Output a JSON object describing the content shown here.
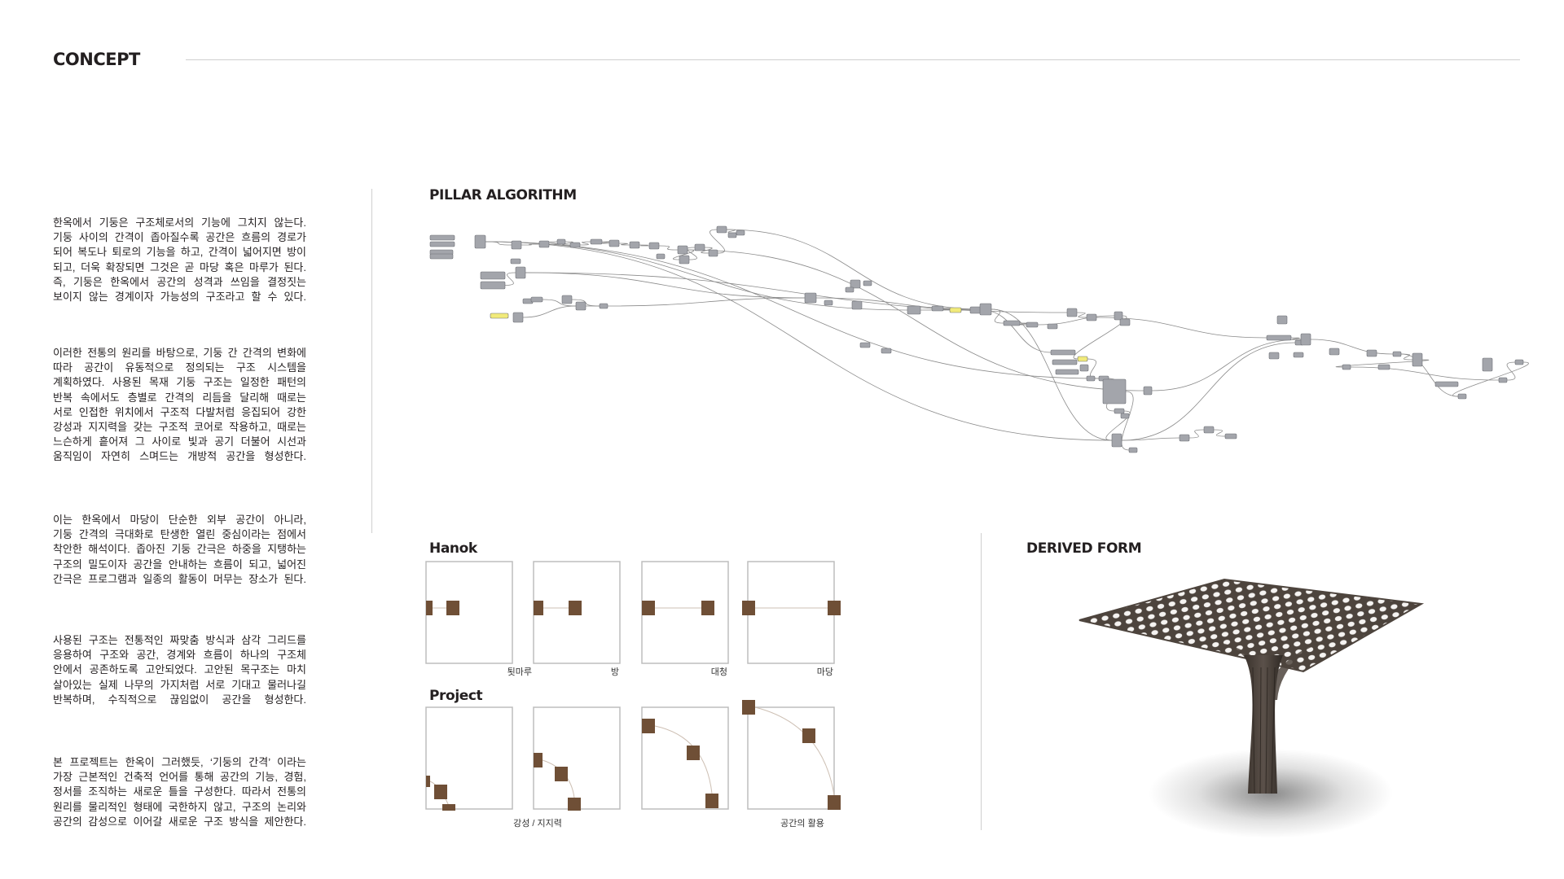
{
  "header": {
    "title": "CONCEPT"
  },
  "text": {
    "paragraphs": [
      [
        "한옥에서 기둥은 구조체로서의 기능에 그치지 않는다.",
        "기둥 사이의 간격이 좁아질수록 공간은 흐름의 경로가",
        "되어 복도나 퇴로의 기능을 하고, 간격이 넓어지면 방이",
        "되고, 더욱 확장되면 그것은 곧 마당 혹은 마루가 된다.",
        "즉, 기둥은 한옥에서 공간의 성격과 쓰임을 결정짓는",
        "보이지 않는 경계이자 가능성의 구조라고 할 수 있다."
      ],
      [
        "이러한 전통의 원리를 바탕으로, 기둥 간 간격의 변화에",
        "따라 공간이 유동적으로 정의되는 구조 시스템을",
        "계획하였다. 사용된 목재 기둥 구조는 일정한 패턴의",
        "반복 속에서도 층별로 간격의 리듬을 달리해 때로는",
        "서로 인접한 위치에서 구조적 다발처럼 응집되어 강한",
        "강성과 지지력을 갖는 구조적 코어로 작용하고, 때로는",
        "느슨하게 흩어져 그 사이로 빛과 공기 더불어 시선과",
        "움직임이 자연히 스며드는 개방적 공간을 형성한다."
      ],
      [
        "이는 한옥에서 마당이 단순한 외부 공간이 아니라,",
        "기둥 간격의 극대화로 탄생한 열린 중심이라는 점에서",
        "착안한 해석이다. 좁아진 기둥 간극은 하중을 지탱하는",
        "구조의 밀도이자 공간을 안내하는 흐름이 되고, 넓어진",
        "간극은 프로그램과 일종의 활동이 머무는 장소가 된다."
      ],
      [
        "사용된 구조는 전통적인 짜맞춤 방식과 삼각 그리드를",
        "응용하여 구조와 공간, 경계와 흐름이 하나의 구조체",
        "안에서 공존하도록 고안되었다. 고안된 목구조는 마치",
        "살아있는 실제 나무의 가지처럼 서로 기대고 물러나길",
        "반복하며, 수직적으로 끊임없이 공간을 형성한다."
      ],
      [
        "본 프로젝트는 한옥이 그러했듯, ‘기둥의 간격’ 이라는",
        "가장 근본적인 건축적 언어를 통해 공간의 기능, 경험,",
        "정서를 조직하는 새로운 틀을 구성한다. 따라서 전통의",
        "원리를 물리적인 형태에 국한하지 않고, 구조의 논리와",
        "공간의 감성으로 이어갈 새로운 구조 방식을 제안한다."
      ]
    ]
  },
  "algorithm": {
    "title": "PILLAR ALGORITHM"
  },
  "hanok": {
    "title": "Hanok",
    "captions": [
      "툇마루",
      "방",
      "대청",
      "마당"
    ]
  },
  "project": {
    "title": "Project",
    "captions": [
      "강성 / 지지력",
      "공간의 활용"
    ]
  },
  "derived": {
    "title": "DERIVED FORM"
  },
  "colors": {
    "pillar": "#6f4f36",
    "lattice": "#4d443d",
    "box_border": "#bdbdbd"
  }
}
